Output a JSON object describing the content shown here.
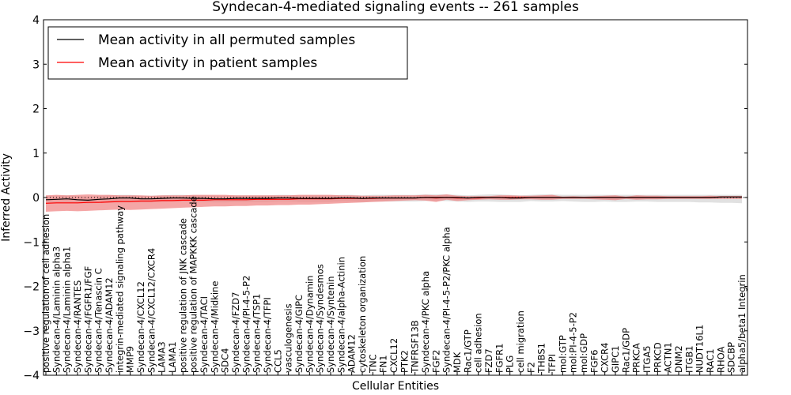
{
  "chart_data": {
    "type": "line",
    "title": "Syndecan-4-mediated signaling events -- 261 samples",
    "xlabel": "Cellular Entities",
    "ylabel": "Inferred Activity",
    "ylim": [
      -4,
      4
    ],
    "yticks": [
      4,
      3,
      2,
      1,
      0,
      -1,
      -2,
      -3,
      -4
    ],
    "ytick_labels": [
      "4",
      "3",
      "2",
      "1",
      "0",
      "−1",
      "−2",
      "−3",
      "−4"
    ],
    "legend": {
      "placement": "top-left",
      "entries": [
        {
          "label": "Mean activity in all permuted samples",
          "color": "#000000"
        },
        {
          "label": "Mean activity in patient samples",
          "color": "#ff0000"
        }
      ]
    },
    "categories": [
      "positive regulation of cell adhesion",
      "Syndecan-4/Laminin alpha3",
      "Syndecan-4/Laminin alpha1",
      "Syndecan-4/RANTES",
      "Syndecan-4/FGFR1/FGF",
      "Syndecan-4/Tenascin C",
      "Syndecan-4/ADAM12",
      "integrin-mediated signaling pathway",
      "MMP9",
      "Syndecan-4/CXCL12",
      "Syndecan-4/CXCL12/CXCR4",
      "LAMA3",
      "LAMA1",
      "positive regulation of JNK cascade",
      "positive regulation of MAPKKK cascade",
      "Syndecan-4/TACI",
      "Syndecan-4/Midkine",
      "SDC4",
      "Syndecan-4/FZD7",
      "Syndecan-4/PI-4-5-P2",
      "Syndecan-4/TSP1",
      "Syndecan-4/TFPI",
      "CCL5",
      "vasculogenesis",
      "Syndecan-4/GIPC",
      "Syndecan-4/Dynamin",
      "Syndecan-4/Syndesmos",
      "Syndecan-4/Syntenin",
      "Syndecan-4/alpha-Actinin",
      "ADAM12",
      "cytoskeleton organization",
      "TNC",
      "FN1",
      "CXCL12",
      "PTK2",
      "TNFRSF13B",
      "Syndecan-4/PKC alpha",
      "FGF2",
      "Syndecan-4/PI-4-5-P2/PKC alpha",
      "MDK",
      "Rac1/GTP",
      "cell adhesion",
      "FZD7",
      "FGFR1",
      "PLG",
      "cell migration",
      "F2",
      "THBS1",
      "TFPI",
      "mol:GTP",
      "mol:PI-4-5-P2",
      "mol:GDP",
      "FGF6",
      "CXCR4",
      "GIPC1",
      "Rac1/GDP",
      "PRKCA",
      "ITGA5",
      "PRKCD",
      "ACTN1",
      "DNM2",
      "ITGB1",
      "NUDT16L1",
      "RAC1",
      "RHOA",
      "SDCBP",
      "alpha5/beta1 Integrin"
    ],
    "series": [
      {
        "name": "Mean activity in patient samples",
        "color": "#ff0000",
        "band_color": "#f08080",
        "values": [
          -0.13,
          -0.12,
          -0.12,
          -0.12,
          -0.11,
          -0.11,
          -0.1,
          -0.09,
          -0.09,
          -0.08,
          -0.08,
          -0.07,
          -0.07,
          -0.06,
          -0.06,
          -0.06,
          -0.05,
          -0.05,
          -0.05,
          -0.05,
          -0.04,
          -0.04,
          -0.04,
          -0.04,
          -0.03,
          -0.03,
          -0.03,
          -0.03,
          -0.02,
          -0.02,
          -0.02,
          -0.02,
          -0.01,
          -0.01,
          -0.01,
          -0.01,
          0,
          -0.01,
          0,
          -0.01,
          -0.01,
          -0.01,
          0,
          0,
          0,
          0,
          0,
          0,
          0,
          0,
          0,
          0,
          0,
          0,
          0,
          0,
          0,
          0,
          0,
          0,
          0,
          0,
          0,
          0,
          0.01,
          0.01,
          0.01
        ],
        "upper": [
          0.05,
          0.06,
          0.05,
          0.06,
          0.07,
          0.06,
          0.06,
          0.05,
          0.05,
          0.05,
          0.04,
          0.05,
          0.05,
          0.05,
          0.06,
          0.06,
          0.06,
          0.06,
          0.05,
          0.05,
          0.05,
          0.05,
          0.05,
          0.05,
          0.06,
          0.06,
          0.06,
          0.06,
          0.05,
          0.05,
          0.04,
          0.04,
          0.04,
          0.05,
          0.05,
          0.05,
          0.06,
          0.05,
          0.07,
          0.04,
          0.03,
          0.03,
          0.03,
          0.05,
          0.05,
          0.04,
          0.04,
          0.05,
          0.06,
          0.02,
          0.03,
          0.02,
          0.03,
          0.04,
          0.05,
          0.02,
          0.05,
          0.04,
          0.04,
          0.03,
          0.03,
          0.03,
          0.03,
          0.04,
          0.03,
          0.03,
          0.03
        ],
        "lower": [
          -0.32,
          -0.31,
          -0.3,
          -0.31,
          -0.3,
          -0.29,
          -0.28,
          -0.27,
          -0.28,
          -0.27,
          -0.26,
          -0.25,
          -0.24,
          -0.23,
          -0.22,
          -0.21,
          -0.2,
          -0.2,
          -0.19,
          -0.19,
          -0.18,
          -0.18,
          -0.17,
          -0.17,
          -0.16,
          -0.16,
          -0.15,
          -0.14,
          -0.13,
          -0.12,
          -0.11,
          -0.1,
          -0.09,
          -0.08,
          -0.07,
          -0.06,
          -0.07,
          -0.1,
          -0.05,
          -0.08,
          -0.06,
          -0.05,
          -0.04,
          -0.05,
          -0.05,
          -0.04,
          -0.04,
          -0.05,
          -0.05,
          -0.03,
          -0.03,
          -0.03,
          -0.04,
          -0.05,
          -0.06,
          -0.03,
          -0.05,
          -0.04,
          -0.04,
          -0.03,
          -0.03,
          -0.03,
          -0.03,
          -0.03,
          -0.03,
          -0.03,
          -0.03
        ]
      },
      {
        "name": "Mean activity in all permuted samples",
        "color": "#000000",
        "band_color": "#c8c8c8",
        "values": [
          -0.05,
          -0.04,
          -0.03,
          -0.05,
          -0.06,
          -0.04,
          -0.03,
          -0.01,
          -0.01,
          -0.03,
          -0.03,
          -0.02,
          -0.01,
          -0.01,
          -0.02,
          -0.02,
          -0.03,
          -0.03,
          -0.02,
          -0.02,
          -0.02,
          -0.02,
          -0.01,
          -0.01,
          -0.02,
          -0.02,
          -0.02,
          -0.02,
          -0.01,
          -0.01,
          -0.02,
          -0.01,
          -0.01,
          -0.01,
          -0.01,
          -0.01,
          0,
          0,
          0,
          0,
          -0.01,
          0,
          0,
          0,
          -0.01,
          -0.01,
          0,
          0,
          0,
          0,
          0,
          0,
          0,
          0,
          0,
          0,
          0,
          0,
          0,
          0,
          0,
          0,
          0,
          0,
          0.01,
          0.01,
          0.01
        ],
        "upper": [
          0.03,
          0.04,
          0.05,
          0.03,
          0.02,
          0.04,
          0.05,
          0.06,
          0.06,
          0.04,
          0.04,
          0.05,
          0.06,
          0.06,
          0.05,
          0.05,
          0.04,
          0.04,
          0.05,
          0.05,
          0.05,
          0.05,
          0.06,
          0.06,
          0.05,
          0.05,
          0.05,
          0.05,
          0.06,
          0.06,
          0.05,
          0.06,
          0.06,
          0.06,
          0.06,
          0.06,
          0.07,
          0.07,
          0.07,
          0.06,
          0.05,
          0.06,
          0.07,
          0.07,
          0.06,
          0.05,
          0.06,
          0.07,
          0.07,
          0.06,
          0.06,
          0.06,
          0.06,
          0.06,
          0.06,
          0.06,
          0.06,
          0.06,
          0.06,
          0.06,
          0.06,
          0.06,
          0.06,
          0.06,
          0.06,
          0.06,
          0.06
        ],
        "lower": [
          -0.13,
          -0.12,
          -0.11,
          -0.13,
          -0.14,
          -0.12,
          -0.11,
          -0.09,
          -0.09,
          -0.11,
          -0.11,
          -0.1,
          -0.09,
          -0.09,
          -0.1,
          -0.1,
          -0.11,
          -0.11,
          -0.1,
          -0.1,
          -0.1,
          -0.1,
          -0.09,
          -0.09,
          -0.1,
          -0.1,
          -0.1,
          -0.1,
          -0.09,
          -0.09,
          -0.1,
          -0.09,
          -0.09,
          -0.09,
          -0.09,
          -0.09,
          -0.08,
          -0.08,
          -0.08,
          -0.09,
          -0.1,
          -0.09,
          -0.09,
          -0.1,
          -0.1,
          -0.1,
          -0.08,
          -0.09,
          -0.09,
          -0.08,
          -0.09,
          -0.1,
          -0.1,
          -0.09,
          -0.1,
          -0.1,
          -0.09,
          -0.09,
          -0.1,
          -0.1,
          -0.1,
          -0.1,
          -0.11,
          -0.11,
          -0.12,
          -0.12,
          -0.13
        ]
      }
    ]
  }
}
